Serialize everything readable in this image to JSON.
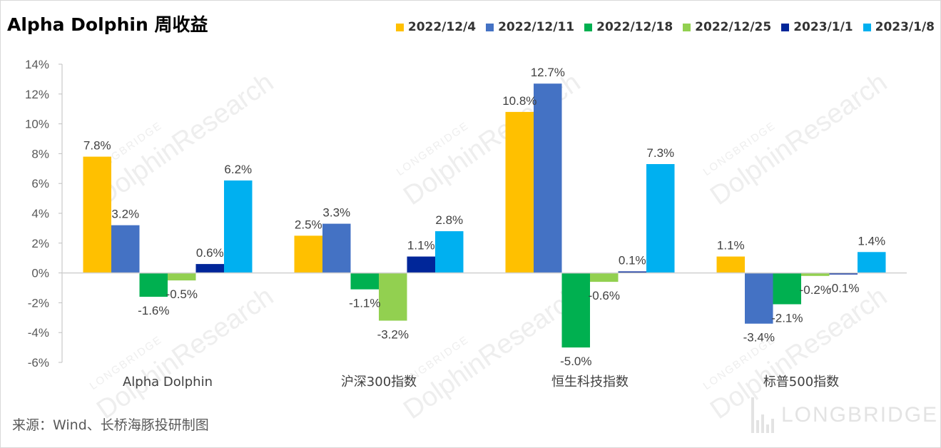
{
  "title": "Alpha Dolphin 周收益",
  "source": "来源：Wind、长桥海豚投研制图",
  "watermark": {
    "brand": "LONGBRIDGE",
    "name": "DolphinResearch",
    "logo_text": "LONGBRIDGE"
  },
  "chart_data": {
    "type": "bar",
    "title": "Alpha Dolphin 周收益",
    "categories": [
      "Alpha Dolphin",
      "沪深300指数",
      "恒生科技指数",
      "标普500指数"
    ],
    "series": [
      {
        "name": "2022/12/4",
        "color": "#FFC000",
        "values": [
          7.8,
          2.5,
          10.8,
          1.1
        ]
      },
      {
        "name": "2022/12/11",
        "color": "#4472C4",
        "values": [
          3.2,
          3.3,
          12.7,
          -3.4
        ]
      },
      {
        "name": "2022/12/18",
        "color": "#00B050",
        "values": [
          -1.6,
          -1.1,
          -5.0,
          -2.1
        ]
      },
      {
        "name": "2022/12/25",
        "color": "#92D050",
        "values": [
          -0.5,
          -3.2,
          -0.6,
          -0.2
        ]
      },
      {
        "name": "2023/1/1",
        "color": "#002699",
        "values": [
          0.6,
          1.1,
          0.1,
          -0.1
        ]
      },
      {
        "name": "2023/1/8",
        "color": "#00B0F0",
        "values": [
          6.2,
          2.8,
          7.3,
          1.4
        ]
      }
    ],
    "data_labels": [
      [
        "7.8%",
        "3.2%",
        "-1.6%",
        "-0.5%",
        "0.6%",
        "6.2%"
      ],
      [
        "2.5%",
        "3.3%",
        "-1.1%",
        "-3.2%",
        "1.1%",
        "2.8%"
      ],
      [
        "10.8%",
        "12.7%",
        "-5.0%",
        "-0.6%",
        "0.1%",
        "7.3%"
      ],
      [
        "1.1%",
        "-3.4%",
        "-2.1%",
        "-0.2%",
        "-0.1%",
        "1.4%"
      ]
    ],
    "y_ticks": [
      "14%",
      "12%",
      "10%",
      "8%",
      "6%",
      "4%",
      "2%",
      "0%",
      "-2%",
      "-4%",
      "-6%"
    ],
    "ylim": [
      -6,
      14
    ],
    "ystep": 2,
    "legend_position": "top-right",
    "grid": false,
    "xlabel": "",
    "ylabel": ""
  }
}
